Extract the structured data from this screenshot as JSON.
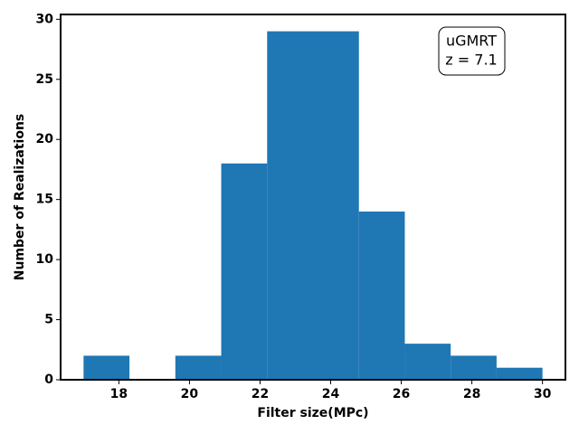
{
  "chart_data": {
    "type": "histogram",
    "bins": [
      17,
      18.3,
      19.6,
      20.9,
      22.2,
      23.5,
      24.8,
      26.1,
      27.4,
      28.7,
      30
    ],
    "values": [
      2,
      0,
      2,
      18,
      29,
      29,
      14,
      3,
      2,
      1
    ],
    "color": "#1f77b4",
    "xlabel": "Filter size(MPc)",
    "ylabel": "Number of Realizations",
    "xlim": [
      16.35,
      30.65
    ],
    "xticks": [
      18,
      20,
      22,
      24,
      26,
      28,
      30
    ],
    "ylim": [
      0,
      30.4
    ],
    "yticks": [
      0,
      5,
      10,
      15,
      20,
      25,
      30
    ],
    "annotation": [
      "uGMRT",
      "z = 7.1"
    ]
  }
}
